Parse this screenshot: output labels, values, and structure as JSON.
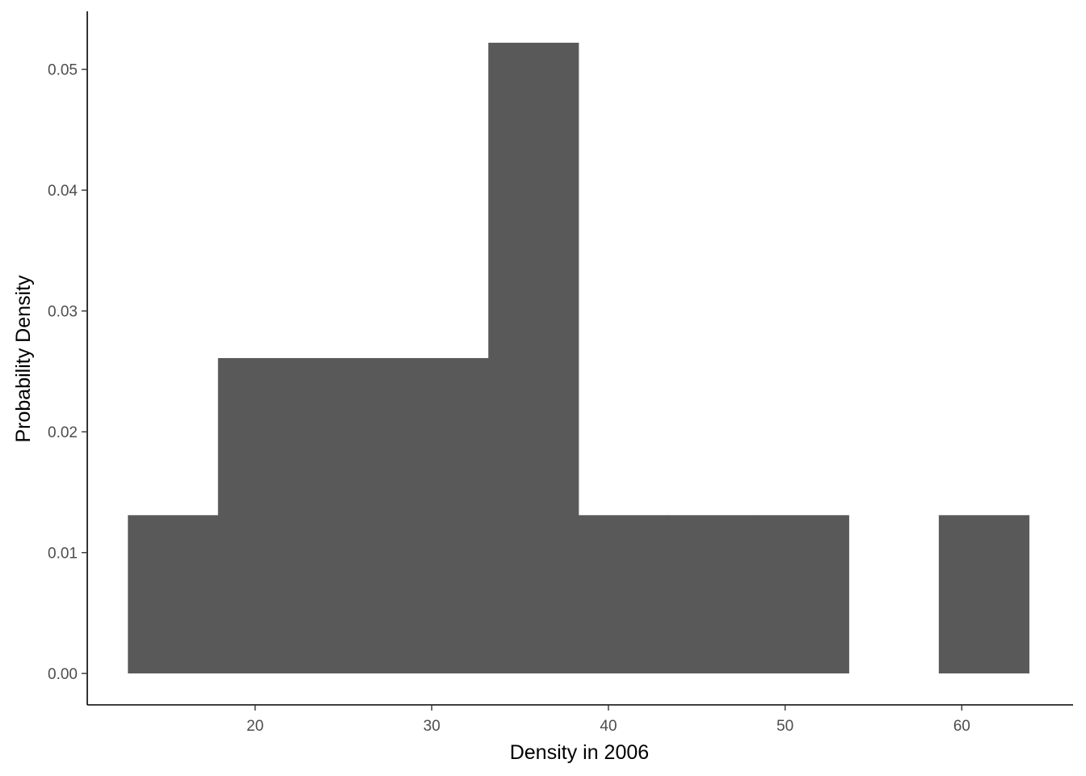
{
  "chart_data": {
    "type": "bar",
    "subtype": "histogram",
    "xlabel": "Density in 2006",
    "ylabel": "Probability Density",
    "xlim": [
      10.5,
      66.3
    ],
    "ylim": [
      -0.0026,
      0.0548
    ],
    "x_ticks": [
      20,
      30,
      40,
      50,
      60
    ],
    "y_ticks": [
      0.0,
      0.01,
      0.02,
      0.03,
      0.04,
      0.05
    ],
    "y_tick_labels": [
      "0.00",
      "0.01",
      "0.02",
      "0.03",
      "0.04",
      "0.05"
    ],
    "grid": false,
    "bins": [
      {
        "x0": 12.8,
        "x1": 17.9,
        "density": 0.0131
      },
      {
        "x0": 17.9,
        "x1": 23.0,
        "density": 0.0261
      },
      {
        "x0": 23.0,
        "x1": 28.1,
        "density": 0.0261
      },
      {
        "x0": 28.1,
        "x1": 33.2,
        "density": 0.0261
      },
      {
        "x0": 33.2,
        "x1": 38.3,
        "density": 0.0522
      },
      {
        "x0": 38.3,
        "x1": 43.4,
        "density": 0.0131
      },
      {
        "x0": 43.4,
        "x1": 48.5,
        "density": 0.0131
      },
      {
        "x0": 48.5,
        "x1": 53.6,
        "density": 0.0131
      },
      {
        "x0": 53.6,
        "x1": 58.7,
        "density": 0
      },
      {
        "x0": 58.7,
        "x1": 63.8,
        "density": 0.0131
      }
    ],
    "colors": {
      "bar": "#595959",
      "axis": "#000000",
      "tick_text": "#4d4d4d"
    }
  }
}
